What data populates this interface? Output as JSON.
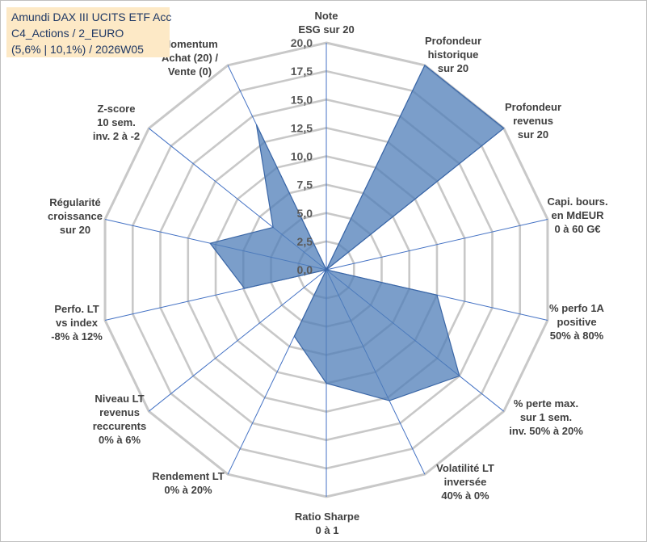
{
  "title": {
    "lines": [
      "Amundi DAX III UCITS ETF Acc",
      "C4_Actions / 2_EURO",
      "(5,6% | 10,1%) / 2026W05"
    ]
  },
  "chart_data": {
    "type": "radar",
    "rmin": 0,
    "rmax": 20,
    "ticks": [
      0,
      2.5,
      5,
      7.5,
      10,
      12.5,
      15,
      17.5,
      20
    ],
    "tick_labels": [
      "0,0",
      "2,5",
      "5,0",
      "7,5",
      "10,0",
      "12,5",
      "15,0",
      "17,5",
      "20,0"
    ],
    "axes": [
      [
        "Note",
        "ESG sur 20"
      ],
      [
        "Profondeur",
        "historique",
        "sur 20"
      ],
      [
        "Profondeur",
        "revenus",
        "sur 20"
      ],
      [
        "Capi. bours.",
        "en MdEUR",
        "0 à 60 G€"
      ],
      [
        "% perfo 1A",
        "positive",
        "50% à 80%"
      ],
      [
        "% perte max.",
        "sur 1 sem.",
        "inv. 50% à 20%"
      ],
      [
        "Volatilité LT",
        "inversée",
        "40% à 0%"
      ],
      [
        "Ratio Sharpe",
        "0 à 1"
      ],
      [
        "Rendement LT",
        "0% à 20%"
      ],
      [
        "Niveau LT",
        "revenus",
        "reccurents",
        "0% à 6%"
      ],
      [
        "Perfo. LT",
        "vs index",
        "-8% à 12%"
      ],
      [
        "Régularité",
        "croissance",
        "sur 20"
      ],
      [
        "Z-score",
        "10 sem.",
        "inv. 2 à -2"
      ],
      [
        "Momentum",
        "Achat (20) /",
        "Vente (0)"
      ]
    ],
    "values": [
      0,
      20,
      20,
      0,
      10,
      15,
      12.8,
      10,
      6.5,
      0,
      7.4,
      10.5,
      6,
      14.2
    ],
    "grid": true,
    "legend": "none",
    "colors": {
      "fill": "#4f7db8",
      "fill_opacity": 0.75,
      "stroke": "#3a66a6",
      "grid": "#c8c8c8",
      "spoke": "#4472c4"
    }
  }
}
